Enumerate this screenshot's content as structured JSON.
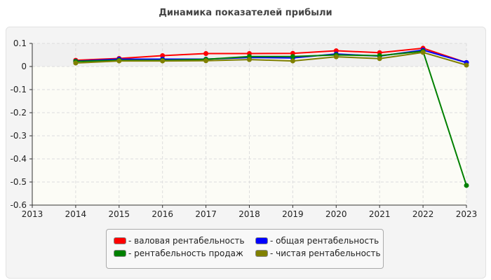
{
  "chart_data": {
    "type": "line",
    "title": "Динамика показателей прибыли",
    "x": [
      2014,
      2015,
      2016,
      2017,
      2018,
      2019,
      2020,
      2021,
      2022,
      2023
    ],
    "xlim": [
      2013,
      2023
    ],
    "ylim": [
      -0.6,
      0.1
    ],
    "xticks": [
      "2013",
      "2014",
      "2015",
      "2016",
      "2017",
      "2018",
      "2019",
      "2020",
      "2021",
      "2022",
      "2023"
    ],
    "yticks": [
      "0.1",
      "0",
      "-0.1",
      "-0.2",
      "-0.3",
      "-0.4",
      "-0.5",
      "-0.6"
    ],
    "grid": true,
    "legend_placement": "bottom",
    "series": [
      {
        "name": "- валовая рентабельность",
        "color": "#ff0000",
        "values": [
          0.027,
          0.035,
          0.047,
          0.056,
          0.056,
          0.057,
          0.068,
          0.06,
          0.079,
          0.017
        ]
      },
      {
        "name": "- общая рентабельность",
        "color": "#0000ff",
        "values": [
          0.023,
          0.032,
          0.032,
          0.032,
          0.039,
          0.037,
          0.054,
          0.045,
          0.071,
          0.017
        ]
      },
      {
        "name": "- рентабельность продаж",
        "color": "#008000",
        "values": [
          0.022,
          0.027,
          0.027,
          0.031,
          0.043,
          0.043,
          0.05,
          0.047,
          0.066,
          -0.515
        ]
      },
      {
        "name": "- чистая рентабельность",
        "color": "#808000",
        "values": [
          0.015,
          0.024,
          0.024,
          0.025,
          0.03,
          0.024,
          0.042,
          0.034,
          0.061,
          0.006
        ]
      }
    ]
  }
}
